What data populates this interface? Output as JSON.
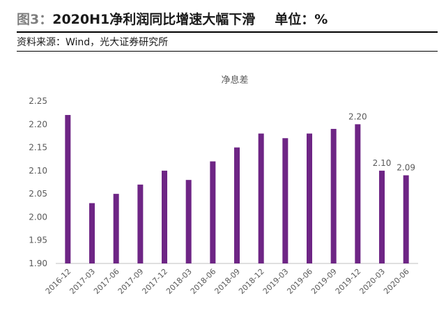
{
  "header": {
    "figure_label": "图3：",
    "title": "2020H1净利润同比增速大幅下滑",
    "unit": "单位：%",
    "source": "资料来源：Wind，光大证券研究所"
  },
  "colors": {
    "bar": "#6E2585",
    "axis": "#bfbfbf",
    "tick_text": "#595959",
    "title_text": "#595959"
  },
  "chart_data": {
    "type": "bar",
    "title": "净息差",
    "categories": [
      "2016-12",
      "2017-03",
      "2017-06",
      "2017-09",
      "2017-12",
      "2018-03",
      "2018-06",
      "2018-09",
      "2018-12",
      "2019-03",
      "2019-06",
      "2019-09",
      "2019-12",
      "2020-03",
      "2020-06"
    ],
    "values": [
      2.22,
      2.03,
      2.05,
      2.07,
      2.1,
      2.08,
      2.12,
      2.15,
      2.18,
      2.17,
      2.18,
      2.19,
      2.2,
      2.1,
      2.09
    ],
    "data_labels": [
      "",
      "",
      "",
      "",
      "",
      "",
      "",
      "",
      "",
      "",
      "",
      "",
      "2.20",
      "2.10",
      "2.09"
    ],
    "yticks": [
      "1.90",
      "1.95",
      "2.00",
      "2.05",
      "2.10",
      "2.15",
      "2.20",
      "2.25"
    ],
    "ylim": [
      1.9,
      2.25
    ],
    "xlabel": "",
    "ylabel": "",
    "grid": false,
    "legend": "none"
  }
}
